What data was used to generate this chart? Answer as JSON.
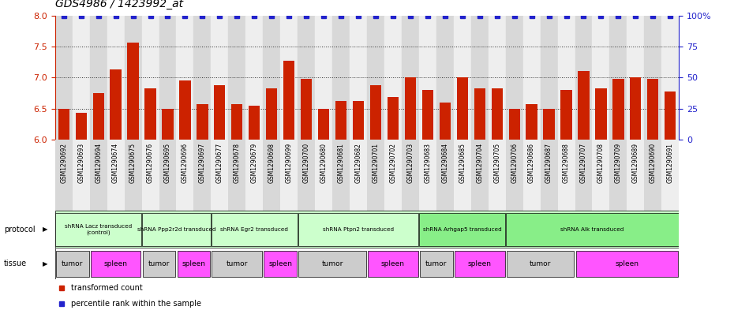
{
  "title": "GDS4986 / 1423992_at",
  "samples": [
    "GSM1290692",
    "GSM1290693",
    "GSM1290694",
    "GSM1290674",
    "GSM1290675",
    "GSM1290676",
    "GSM1290695",
    "GSM1290696",
    "GSM1290697",
    "GSM1290677",
    "GSM1290678",
    "GSM1290679",
    "GSM1290698",
    "GSM1290699",
    "GSM1290700",
    "GSM1290680",
    "GSM1290681",
    "GSM1290682",
    "GSM1290701",
    "GSM1290702",
    "GSM1290703",
    "GSM1290683",
    "GSM1290684",
    "GSM1290685",
    "GSM1290704",
    "GSM1290705",
    "GSM1290706",
    "GSM1290686",
    "GSM1290687",
    "GSM1290688",
    "GSM1290707",
    "GSM1290708",
    "GSM1290709",
    "GSM1290689",
    "GSM1290690",
    "GSM1290691"
  ],
  "bar_values": [
    6.5,
    6.43,
    6.75,
    7.13,
    7.56,
    6.82,
    6.5,
    6.95,
    6.57,
    6.87,
    6.57,
    6.55,
    6.82,
    7.27,
    6.98,
    6.5,
    6.62,
    6.62,
    6.87,
    6.68,
    7.0,
    6.8,
    6.6,
    7.0,
    6.82,
    6.82,
    6.5,
    6.57,
    6.5,
    6.8,
    7.1,
    6.82,
    6.98,
    7.0,
    6.98,
    6.78
  ],
  "bar_color": "#cc2200",
  "dot_color": "#2222cc",
  "ylim_left": [
    6.0,
    8.0
  ],
  "ylim_right": [
    0,
    100
  ],
  "yticks_left": [
    6.0,
    6.5,
    7.0,
    7.5,
    8.0
  ],
  "yticks_right": [
    0,
    25,
    50,
    75,
    100
  ],
  "protocols": [
    {
      "label": "shRNA Lacz transduced\n(control)",
      "start": 0,
      "end": 4,
      "color": "#ccffcc"
    },
    {
      "label": "shRNA Ppp2r2d transduced",
      "start": 5,
      "end": 8,
      "color": "#ccffcc"
    },
    {
      "label": "shRNA Egr2 transduced",
      "start": 9,
      "end": 13,
      "color": "#ccffcc"
    },
    {
      "label": "shRNA Ptpn2 transduced",
      "start": 14,
      "end": 20,
      "color": "#ccffcc"
    },
    {
      "label": "shRNA Arhgap5 transduced",
      "start": 21,
      "end": 25,
      "color": "#88ee88"
    },
    {
      "label": "shRNA Alk transduced",
      "start": 26,
      "end": 35,
      "color": "#88ee88"
    }
  ],
  "tissues": [
    {
      "label": "tumor",
      "start": 0,
      "end": 1,
      "color": "#cccccc"
    },
    {
      "label": "spleen",
      "start": 2,
      "end": 4,
      "color": "#ff55ff"
    },
    {
      "label": "tumor",
      "start": 5,
      "end": 6,
      "color": "#cccccc"
    },
    {
      "label": "spleen",
      "start": 7,
      "end": 8,
      "color": "#ff55ff"
    },
    {
      "label": "tumor",
      "start": 9,
      "end": 11,
      "color": "#cccccc"
    },
    {
      "label": "spleen",
      "start": 12,
      "end": 13,
      "color": "#ff55ff"
    },
    {
      "label": "tumor",
      "start": 14,
      "end": 17,
      "color": "#cccccc"
    },
    {
      "label": "spleen",
      "start": 18,
      "end": 20,
      "color": "#ff55ff"
    },
    {
      "label": "tumor",
      "start": 21,
      "end": 22,
      "color": "#cccccc"
    },
    {
      "label": "spleen",
      "start": 23,
      "end": 25,
      "color": "#ff55ff"
    },
    {
      "label": "tumor",
      "start": 26,
      "end": 29,
      "color": "#cccccc"
    },
    {
      "label": "spleen",
      "start": 30,
      "end": 35,
      "color": "#ff55ff"
    }
  ],
  "col_bg_even": "#d8d8d8",
  "col_bg_odd": "#eeeeee",
  "grid_color": "#333333",
  "legend_items": [
    {
      "label": "transformed count",
      "color": "#cc2200"
    },
    {
      "label": "percentile rank within the sample",
      "color": "#2222cc"
    }
  ]
}
